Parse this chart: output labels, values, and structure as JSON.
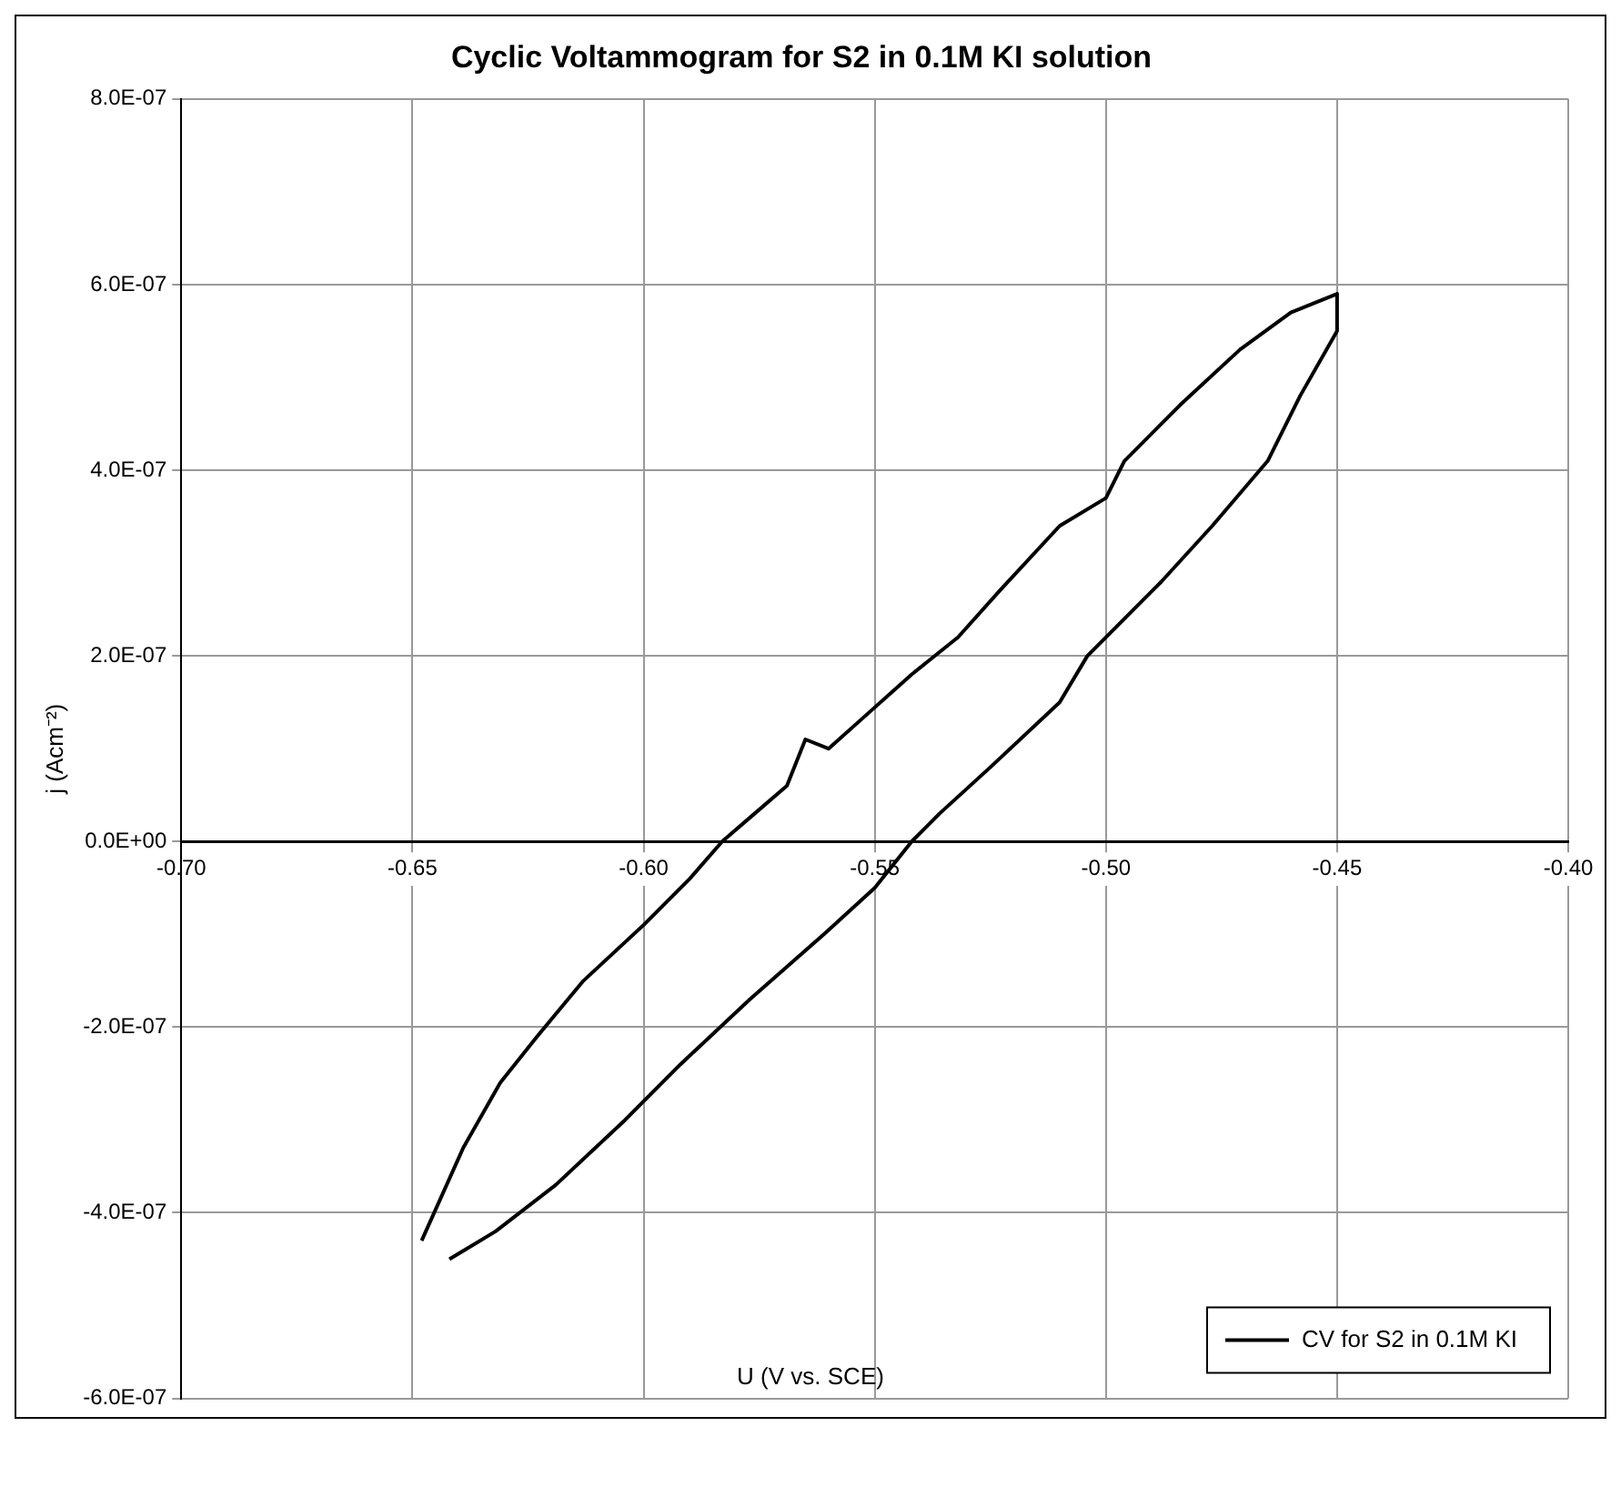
{
  "chart_data": {
    "type": "line",
    "title": "Cyclic Voltammogram for S2 in 0.1M KI solution",
    "xlabel": "U (V vs. SCE)",
    "ylabel": "j (Acm⁻²)",
    "xlim": [
      -0.7,
      -0.4
    ],
    "xticks": [
      {
        "value": -0.7,
        "label": "-0.70"
      },
      {
        "value": -0.65,
        "label": "-0.65"
      },
      {
        "value": -0.6,
        "label": "-0.60"
      },
      {
        "value": -0.55,
        "label": "-0.55"
      },
      {
        "value": -0.5,
        "label": "-0.50"
      },
      {
        "value": -0.45,
        "label": "-0.45"
      },
      {
        "value": -0.4,
        "label": "-0.40"
      }
    ],
    "ylim": [
      -6e-07,
      8e-07
    ],
    "yticks": [
      {
        "value": -6e-07,
        "label": "-6.0E-07"
      },
      {
        "value": -4e-07,
        "label": "-4.0E-07"
      },
      {
        "value": -2e-07,
        "label": "-2.0E-07"
      },
      {
        "value": 0,
        "label": "0.0E+00"
      },
      {
        "value": 2e-07,
        "label": "2.0E-07"
      },
      {
        "value": 4e-07,
        "label": "4.0E-07"
      },
      {
        "value": 6e-07,
        "label": "6.0E-07"
      },
      {
        "value": 8e-07,
        "label": "8.0E-07"
      }
    ],
    "grid": true,
    "legend": "bottom right",
    "marker": "none",
    "line_style": "solid",
    "series": [
      {
        "name": "CV for S2 in 0.1M KI",
        "color": "#000000",
        "x": [
          -0.648,
          -0.639,
          -0.631,
          -0.623,
          -0.613,
          -0.6,
          -0.59,
          -0.583,
          -0.576,
          -0.569,
          -0.565,
          -0.56,
          -0.551,
          -0.542,
          -0.532,
          -0.523,
          -0.51,
          -0.5,
          -0.496,
          -0.484,
          -0.471,
          -0.46,
          -0.45,
          -0.45,
          -0.458,
          -0.465,
          -0.477,
          -0.488,
          -0.504,
          -0.51,
          -0.525,
          -0.536,
          -0.542,
          -0.55,
          -0.561,
          -0.577,
          -0.592,
          -0.604,
          -0.619,
          -0.632,
          -0.642
        ],
        "values": [
          -4.3e-07,
          -3.3e-07,
          -2.6e-07,
          -2.1e-07,
          -1.5e-07,
          -9e-08,
          -4e-08,
          0,
          3e-08,
          6e-08,
          1.1e-07,
          1e-07,
          1.4e-07,
          1.8e-07,
          2.2e-07,
          2.7e-07,
          3.4e-07,
          3.7e-07,
          4.1e-07,
          4.7e-07,
          5.3e-07,
          5.7e-07,
          5.9e-07,
          5.5e-07,
          4.8e-07,
          4.1e-07,
          3.4e-07,
          2.8e-07,
          2e-07,
          1.5e-07,
          8e-08,
          3e-08,
          0,
          -5e-08,
          -1e-07,
          -1.7e-07,
          -2.4e-07,
          -3e-07,
          -3.7e-07,
          -4.2e-07,
          -4.5e-07
        ]
      }
    ]
  }
}
